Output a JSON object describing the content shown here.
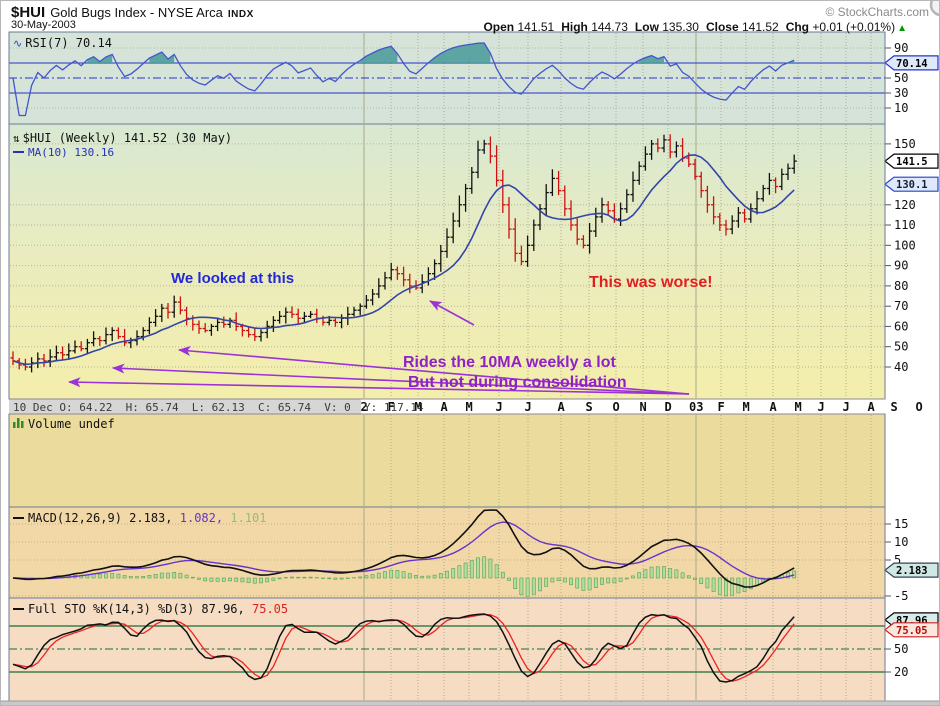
{
  "header": {
    "symbol": "$HUI",
    "name": "Gold Bugs Index - NYSE Arca",
    "exchange": "INDX",
    "date": "30-May-2003",
    "copyright": "© StockCharts.com",
    "quote": {
      "open_label": "Open",
      "open_value": "141.51",
      "high_label": "High",
      "high_value": "144.73",
      "low_label": "Low",
      "low_value": "135.30",
      "close_label": "Close",
      "close_value": "141.52",
      "chg_label": "Chg",
      "chg_value": "+0.01 (+0.01%)",
      "arrow": "▲"
    }
  },
  "rsi_panel": {
    "label": "RSI(7) 70.14",
    "tag": "70.14"
  },
  "price_panel": {
    "label": "$HUI (Weekly) 141.52 (30 May)",
    "ma_label": "MA(10) 130.16",
    "price_tag": "141.5",
    "ma_tag": "130.1"
  },
  "readout": "10 Dec O: 64.22  H: 65.74  L: 62.13  C: 65.74  V: 0  Y: 117.14",
  "volume_panel": {
    "label": "Volume undef"
  },
  "macd_panel": {
    "label": "MACD(12,26,9)",
    "v1": "2.183,",
    "v2": "1.082,",
    "v3": "1.101",
    "tag": "2.183"
  },
  "sto_panel": {
    "label": "Full STO %K(14,3) %D(3)",
    "v1": "87.96,",
    "v2": "75.05",
    "tag_k": "87.96",
    "tag_d": "75.05"
  },
  "annotations": {
    "blue_text": "We looked at this",
    "red_text": "This was worse!",
    "purple_text1": "Rides the 10MA weekly a lot",
    "purple_text2": "But not during consolidation"
  },
  "chart_data": {
    "type": "ohlc",
    "timeframe": "weekly",
    "title": "$HUI (Weekly)",
    "legend_position": "top-left",
    "grid": true,
    "price_axis": [
      150,
      120,
      110,
      100,
      90,
      80,
      70,
      60,
      50,
      40
    ],
    "rsi_axis": [
      90,
      50,
      30,
      10
    ],
    "macd_axis": [
      15,
      10,
      5,
      -5
    ],
    "sto_axis": [
      50,
      20
    ],
    "rsi_bands": {
      "upper": 70,
      "mid": 50,
      "lower": 30
    },
    "sto_bands": {
      "upper": 80,
      "mid": 50,
      "lower": 20
    },
    "x_labels": [
      [
        "2",
        363,
        1
      ],
      [
        "F",
        390,
        0
      ],
      [
        "M",
        417,
        0
      ],
      [
        "A",
        443,
        0
      ],
      [
        "M",
        468,
        0
      ],
      [
        "J",
        498,
        0
      ],
      [
        "J",
        527,
        0
      ],
      [
        "A",
        560,
        0
      ],
      [
        "S",
        588,
        0
      ],
      [
        "O",
        615,
        0
      ],
      [
        "N",
        642,
        0
      ],
      [
        "D",
        667,
        0
      ],
      [
        "03",
        695,
        1
      ],
      [
        "F",
        720,
        0
      ],
      [
        "M",
        745,
        0
      ],
      [
        "A",
        772,
        0
      ],
      [
        "M",
        797,
        0
      ],
      [
        "J",
        820,
        0
      ],
      [
        "J",
        845,
        0
      ],
      [
        "A",
        870,
        0
      ],
      [
        "S",
        893,
        0
      ],
      [
        "O",
        918,
        0
      ]
    ],
    "closes": [
      43,
      41,
      40,
      42,
      44,
      43,
      45,
      47,
      46,
      48,
      50,
      49,
      52,
      54,
      53,
      56,
      58,
      55,
      52,
      53,
      55,
      58,
      62,
      65,
      69,
      67,
      72,
      68,
      64,
      61,
      59,
      58,
      60,
      62,
      61,
      63,
      60,
      58,
      56,
      55,
      57,
      60,
      63,
      65,
      67,
      66,
      64,
      65,
      66,
      64,
      62,
      63,
      62,
      64,
      66,
      68,
      70,
      73,
      76,
      80,
      84,
      88,
      86,
      83,
      80,
      79,
      82,
      86,
      91,
      97,
      104,
      112,
      120,
      128,
      136,
      147,
      150,
      144,
      132,
      120,
      108,
      96,
      92,
      100,
      110,
      118,
      126,
      133,
      127,
      118,
      110,
      103,
      100,
      107,
      114,
      120,
      117,
      113,
      118,
      125,
      132,
      139,
      145,
      150,
      148,
      152,
      146,
      149,
      143,
      140,
      134,
      127,
      120,
      114,
      110,
      108,
      112,
      116,
      113,
      118,
      123,
      128,
      132,
      129,
      135,
      138,
      141.52
    ],
    "last_bar": {
      "open": 141.51,
      "high": 144.73,
      "low": 135.3,
      "close": 141.52
    },
    "current_values": {
      "price": 141.52,
      "ma10": 130.16,
      "rsi7": 70.14,
      "macd": [
        2.183,
        1.082,
        1.101
      ],
      "full_sto": [
        87.96,
        75.05
      ]
    },
    "arrows": [
      [
        688,
        393,
        68,
        381
      ],
      [
        688,
        393,
        112,
        367
      ],
      [
        688,
        393,
        178,
        349
      ],
      [
        473,
        324,
        429,
        300
      ]
    ],
    "colors": {
      "bar_up": "#111111",
      "bar_down": "#cc1111",
      "ma": "#3344aa",
      "rsi_line": "#4455cc",
      "rsi_fill": "#4f9d9d",
      "rsi_band": "#2233cc",
      "macd_line": "#111111",
      "macd_signal": "#6633cc",
      "hist_fill": "#aede9e",
      "hist_stroke": "#55a055",
      "sto_k": "#111111",
      "sto_d": "#ee2222",
      "sto_band": "#1b6b36",
      "annotation_purple": "#9b33d6",
      "annotation_blue": "#2228d8",
      "annotation_red": "#e02020"
    }
  }
}
